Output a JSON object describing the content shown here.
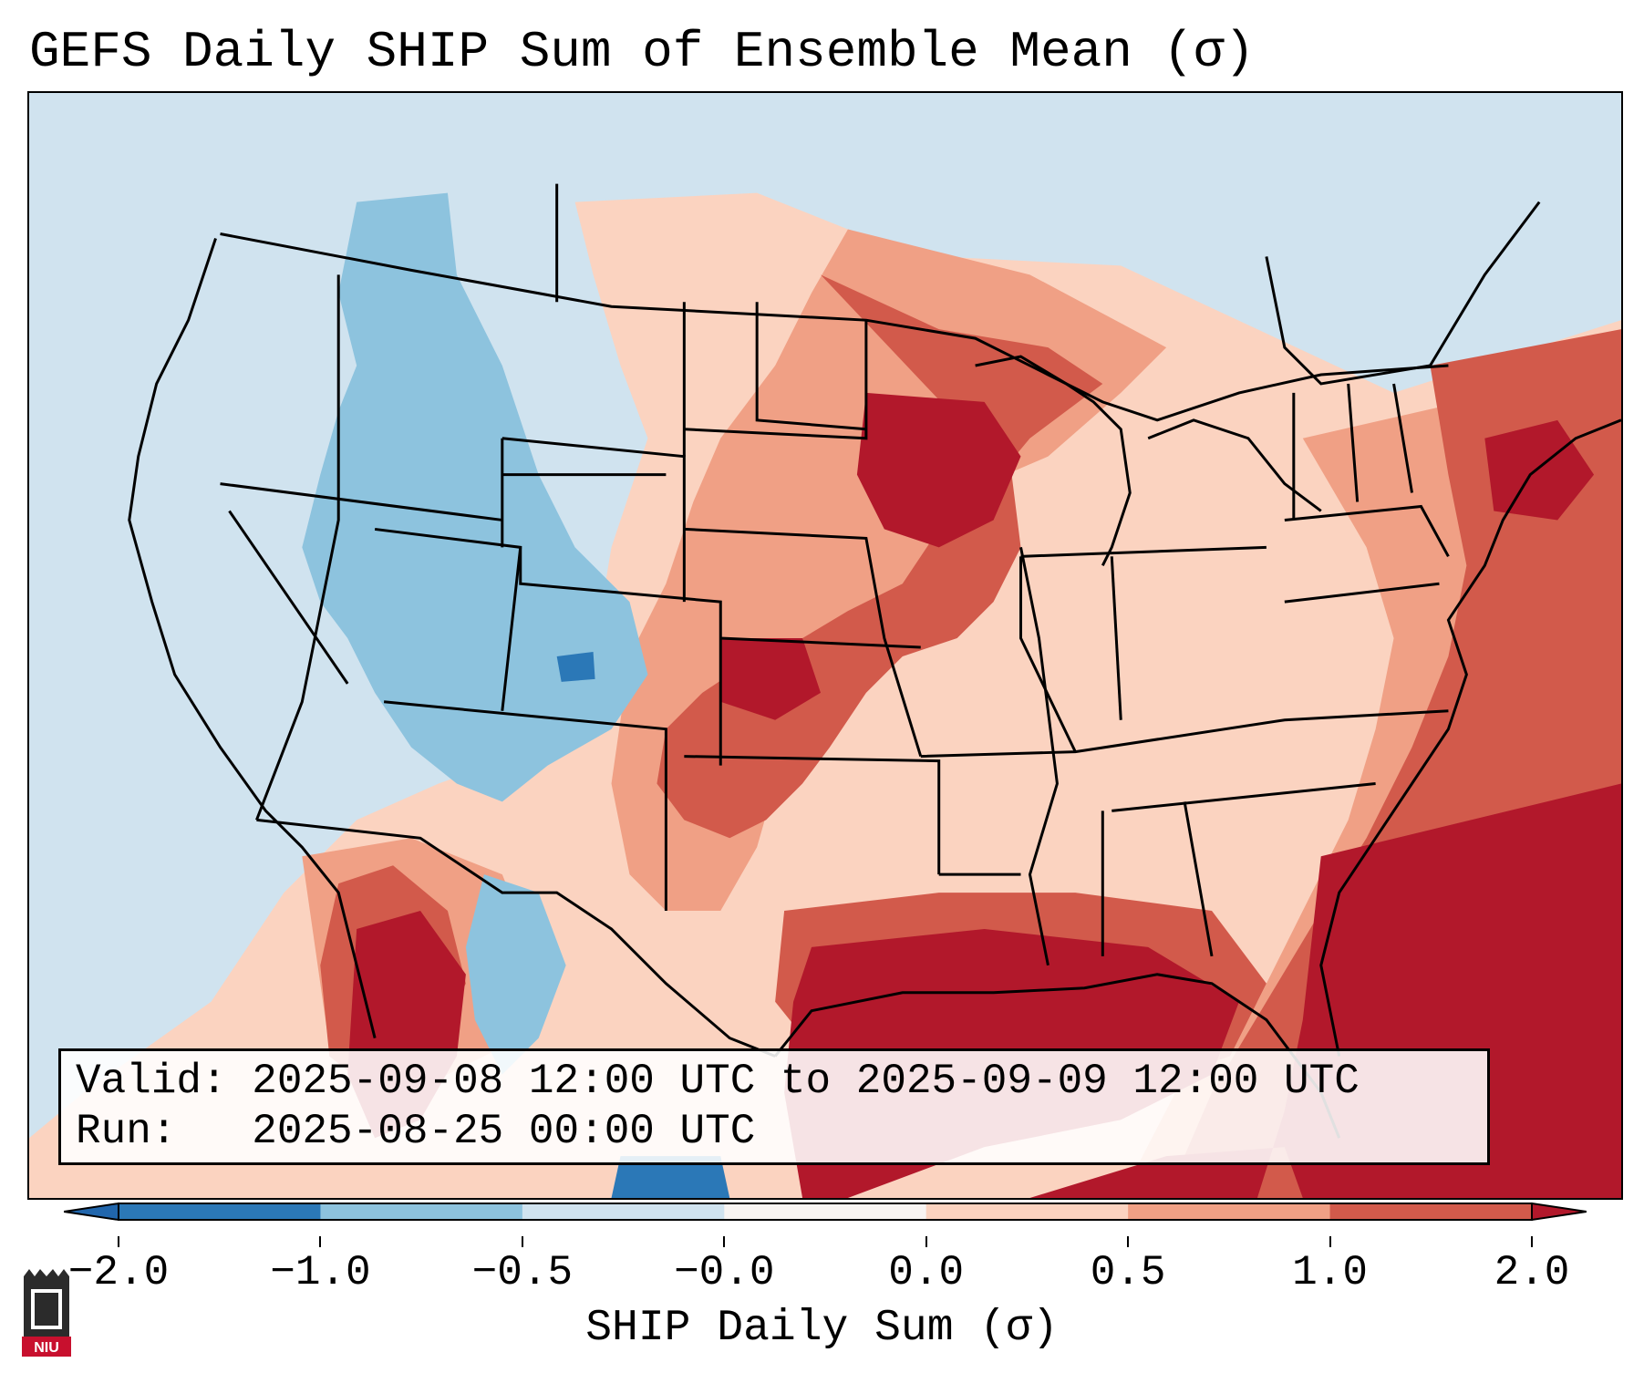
{
  "title": "GEFS Daily SHIP Sum of Ensemble Mean (σ)",
  "info": {
    "valid_line": "Valid: 2025-09-08 12:00 UTC to 2025-09-09 12:00 UTC",
    "run_line": "Run:   2025-08-25 00:00 UTC"
  },
  "colorbar": {
    "label": "SHIP Daily Sum (σ)",
    "ticks": [
      "−2.0",
      "−1.0",
      "−0.5",
      "−0.0",
      "0.0",
      "0.5",
      "1.0",
      "2.0"
    ],
    "colors": [
      "#2b78b7",
      "#8dc3de",
      "#d0e3ef",
      "#f8f4f2",
      "#fbd3c0",
      "#f0a085",
      "#d25a4b"
    ],
    "under_color": "#2166ac",
    "over_color": "#b2182b"
  },
  "map": {
    "ocean_color": "#d0e3ef",
    "palette": {
      "n2": "#2b78b7",
      "n1": "#8dc3de",
      "n0": "#d0e3ef",
      "p0": "#fbd3c0",
      "p1": "#f0a085",
      "p2": "#d25a4b",
      "p3": "#b2182b"
    }
  },
  "logo": {
    "text": "NIU"
  }
}
